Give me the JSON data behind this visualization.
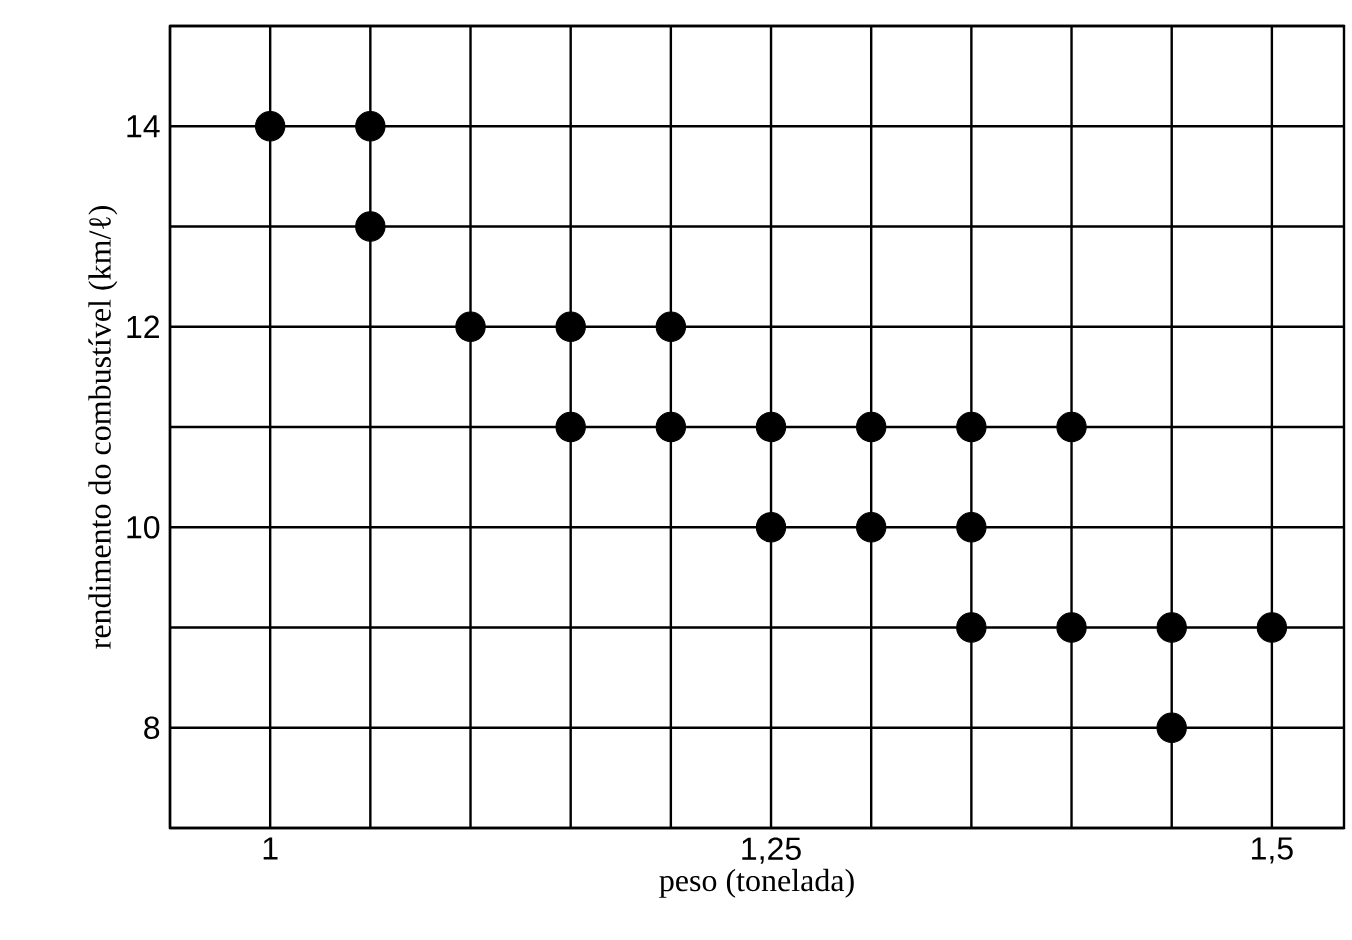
{
  "chart_data": {
    "type": "scatter",
    "xlabel": "peso (tonelada)",
    "ylabel": "rendimento do combustível (km/ℓ)",
    "x": [
      1,
      1.05,
      1.05,
      1.1,
      1.15,
      1.2,
      1.15,
      1.2,
      1.25,
      1.3,
      1.35,
      1.4,
      1.25,
      1.3,
      1.35,
      1.35,
      1.4,
      1.45,
      1.5,
      1.45
    ],
    "values": [
      14,
      14,
      13,
      12,
      12,
      12,
      11,
      11,
      11,
      11,
      11,
      11,
      10,
      10,
      10,
      9,
      9,
      9,
      9,
      8
    ],
    "color": "#000000",
    "marker": "circle",
    "xlim": [
      0.95,
      1.536
    ],
    "ylim": [
      7,
      15
    ],
    "xticks": [
      {
        "value": 0.95,
        "label": null
      },
      {
        "value": 1,
        "label": "1"
      },
      {
        "value": 1.05,
        "label": null
      },
      {
        "value": 1.1,
        "label": null
      },
      {
        "value": 1.15,
        "label": null
      },
      {
        "value": 1.2,
        "label": null
      },
      {
        "value": 1.25,
        "label": "1,25"
      },
      {
        "value": 1.3,
        "label": null
      },
      {
        "value": 1.35,
        "label": null
      },
      {
        "value": 1.4,
        "label": null
      },
      {
        "value": 1.45,
        "label": null
      },
      {
        "value": 1.5,
        "label": "1,5"
      }
    ],
    "yticks": [
      {
        "value": 7,
        "label": null
      },
      8,
      {
        "value": 9,
        "label": null
      },
      10,
      {
        "value": 11,
        "label": null
      },
      12,
      {
        "value": 13,
        "label": null
      },
      14,
      {
        "value": 15,
        "label": null
      }
    ],
    "grid": true
  }
}
